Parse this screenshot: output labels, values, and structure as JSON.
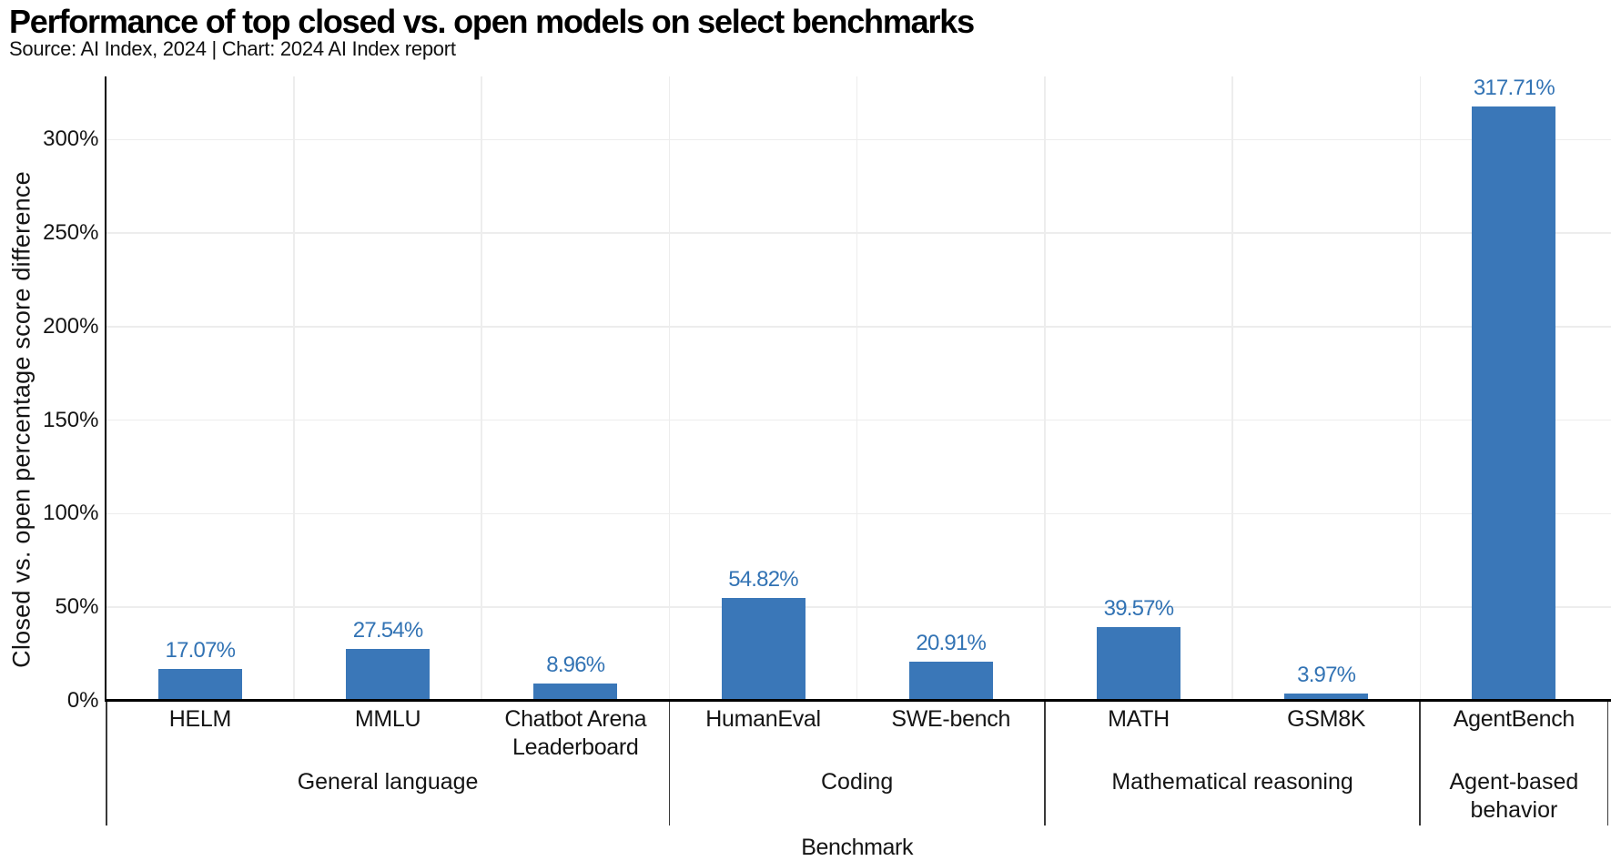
{
  "title": "Performance of top closed vs. open models on select benchmarks",
  "subtitle": "Source: AI Index, 2024 | Chart: 2024 AI Index report",
  "colors": {
    "bar": "#3a77b8",
    "data_label": "#3273b4",
    "grid": "#ededed",
    "axis": "#000000",
    "group_border": "#3a3a3a",
    "text": "#151515"
  },
  "chart_data": {
    "type": "bar",
    "title": "Performance of top closed vs. open models on select benchmarks",
    "subtitle": "Source: AI Index, 2024 | Chart: 2024 AI Index report",
    "xlabel": "Benchmark",
    "ylabel": "Closed vs. open percentage score difference",
    "ylim": [
      0,
      333.7
    ],
    "ytick_values": [
      0,
      50,
      100,
      150,
      200,
      250,
      300
    ],
    "ytick_labels": [
      "0%",
      "50%",
      "100%",
      "150%",
      "200%",
      "250%",
      "300%"
    ],
    "grid": true,
    "legend": "none",
    "categories": [
      "HELM",
      "MMLU",
      "Chatbot Arena Leaderboard",
      "HumanEval",
      "SWE-bench",
      "MATH",
      "GSM8K",
      "AgentBench"
    ],
    "category_label_lines": [
      [
        "HELM"
      ],
      [
        "MMLU"
      ],
      [
        "Chatbot Arena",
        "Leaderboard"
      ],
      [
        "HumanEval"
      ],
      [
        "SWE-bench"
      ],
      [
        "MATH"
      ],
      [
        "GSM8K"
      ],
      [
        "AgentBench"
      ]
    ],
    "values": [
      17.07,
      27.54,
      8.96,
      54.82,
      20.91,
      39.57,
      3.97,
      317.71
    ],
    "data_labels": [
      "17.07%",
      "27.54%",
      "8.96%",
      "54.82%",
      "20.91%",
      "39.57%",
      "3.97%",
      "317.71%"
    ],
    "groups": [
      {
        "label": "General language",
        "label_lines": [
          "General language"
        ],
        "span": 3
      },
      {
        "label": "Coding",
        "label_lines": [
          "Coding"
        ],
        "span": 2
      },
      {
        "label": "Mathematical reasoning",
        "label_lines": [
          "Mathematical reasoning"
        ],
        "span": 2
      },
      {
        "label": "Agent-based behavior",
        "label_lines": [
          "Agent-based",
          "behavior"
        ],
        "span": 1
      }
    ]
  }
}
